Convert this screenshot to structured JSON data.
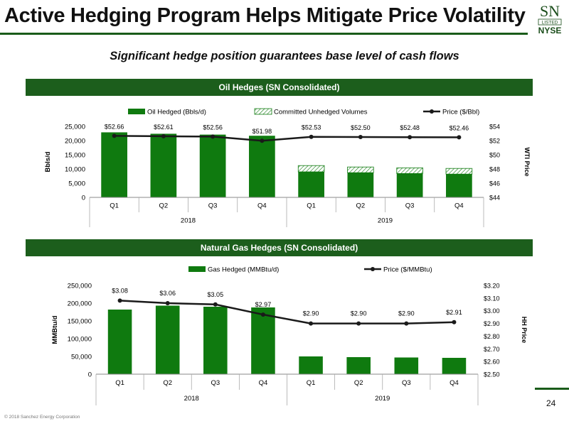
{
  "header": {
    "title": "Active Hedging Program Helps Mitigate Price Volatility",
    "subtitle": "Significant hedge position guarantees base level of cash flows",
    "logo_top": "SN",
    "logo_mid": "LISTED",
    "logo_bottom": "NYSE"
  },
  "footer": {
    "copyright": "© 2018 Sanchez Energy Corporation",
    "page": "24"
  },
  "colors": {
    "brand_green": "#1c5e1c",
    "bar_green": "#0f7a0f",
    "line": "#1a1a1a"
  },
  "chart_data": [
    {
      "type": "bar",
      "banner": "Oil Hedges (SN Consolidated)",
      "categories": [
        "Q1",
        "Q2",
        "Q3",
        "Q4",
        "Q1",
        "Q2",
        "Q3",
        "Q4"
      ],
      "groups": [
        "2018",
        "2019"
      ],
      "ylabel": "Bbls/d",
      "y2label": "WTI Price",
      "ylim": [
        0,
        25000
      ],
      "y2lim": [
        44,
        54
      ],
      "yticks": [
        "25,000",
        "20,000",
        "15,000",
        "10,000",
        "5,000",
        "0"
      ],
      "y2ticks": [
        "$54",
        "$52",
        "$50",
        "$48",
        "$46",
        "$44"
      ],
      "series": [
        {
          "name": "Oil Hedged (Bbls/d)",
          "kind": "bar",
          "values": [
            22900,
            22400,
            22100,
            21700,
            9000,
            8700,
            8400,
            8200
          ]
        },
        {
          "name": "Committed Unhedged Volumes",
          "kind": "stacked-hatch",
          "values": [
            0,
            0,
            0,
            0,
            2200,
            2000,
            2000,
            2000
          ]
        },
        {
          "name": "Price ($/Bbl)",
          "kind": "line",
          "axis": "right",
          "values": [
            52.66,
            52.61,
            52.56,
            51.98,
            52.53,
            52.5,
            52.48,
            52.46
          ],
          "labels": [
            "$52.66",
            "$52.61",
            "$52.56",
            "$51.98",
            "$52.53",
            "$52.50",
            "$52.48",
            "$52.46"
          ]
        }
      ]
    },
    {
      "type": "bar",
      "banner": "Natural Gas Hedges (SN Consolidated)",
      "categories": [
        "Q1",
        "Q2",
        "Q3",
        "Q4",
        "Q1",
        "Q2",
        "Q3",
        "Q4"
      ],
      "groups": [
        "2018",
        "2019"
      ],
      "ylabel": "MMBtu/d",
      "y2label": "HH Price",
      "ylim": [
        0,
        250000
      ],
      "y2lim": [
        2.5,
        3.2
      ],
      "yticks": [
        "250,000",
        "200,000",
        "150,000",
        "100,000",
        "50,000",
        "0"
      ],
      "y2ticks": [
        "$3.20",
        "$3.10",
        "$3.00",
        "$2.90",
        "$2.80",
        "$2.70",
        "$2.60",
        "$2.50"
      ],
      "series": [
        {
          "name": "Gas Hedged (MMBtu/d)",
          "kind": "bar",
          "values": [
            182000,
            193000,
            190000,
            188000,
            50000,
            48000,
            47000,
            46000
          ]
        },
        {
          "name": "Price ($/MMBtu)",
          "kind": "line",
          "axis": "right",
          "values": [
            3.08,
            3.06,
            3.05,
            2.97,
            2.9,
            2.9,
            2.9,
            2.91
          ],
          "labels": [
            "$3.08",
            "$3.06",
            "$3.05",
            "$2.97",
            "$2.90",
            "$2.90",
            "$2.90",
            "$2.91"
          ]
        }
      ]
    }
  ]
}
